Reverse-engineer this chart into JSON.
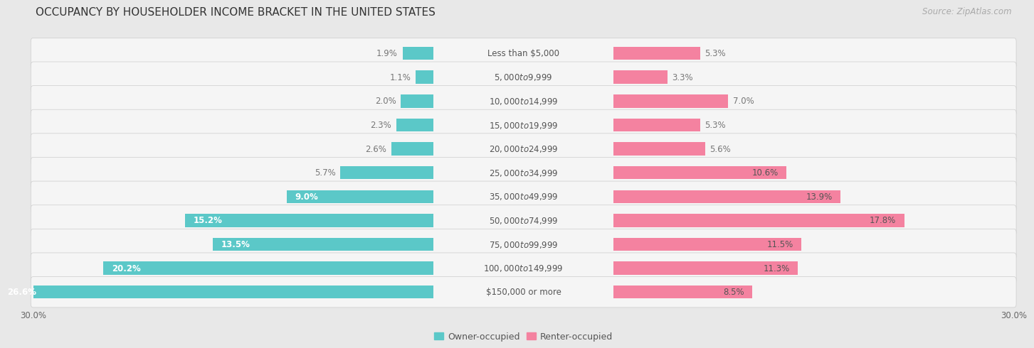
{
  "title": "OCCUPANCY BY HOUSEHOLDER INCOME BRACKET IN THE UNITED STATES",
  "source": "Source: ZipAtlas.com",
  "categories": [
    "Less than $5,000",
    "$5,000 to $9,999",
    "$10,000 to $14,999",
    "$15,000 to $19,999",
    "$20,000 to $24,999",
    "$25,000 to $34,999",
    "$35,000 to $49,999",
    "$50,000 to $74,999",
    "$75,000 to $99,999",
    "$100,000 to $149,999",
    "$150,000 or more"
  ],
  "owner_values": [
    1.9,
    1.1,
    2.0,
    2.3,
    2.6,
    5.7,
    9.0,
    15.2,
    13.5,
    20.2,
    26.6
  ],
  "renter_values": [
    5.3,
    3.3,
    7.0,
    5.3,
    5.6,
    10.6,
    13.9,
    17.8,
    11.5,
    11.3,
    8.5
  ],
  "owner_color": "#5bc8c8",
  "renter_color": "#f482a0",
  "owner_color_light": "#a8e0e0",
  "renter_color_light": "#f9b8cc",
  "background_color": "#e8e8e8",
  "row_bg_color": "#f5f5f5",
  "axis_max": 30.0,
  "title_fontsize": 11,
  "label_fontsize": 8.5,
  "value_fontsize": 8.5,
  "tick_fontsize": 8.5,
  "source_fontsize": 8.5,
  "legend_fontsize": 9,
  "bar_height": 0.55,
  "row_padding": 0.22,
  "inner_label_threshold": 8.0
}
